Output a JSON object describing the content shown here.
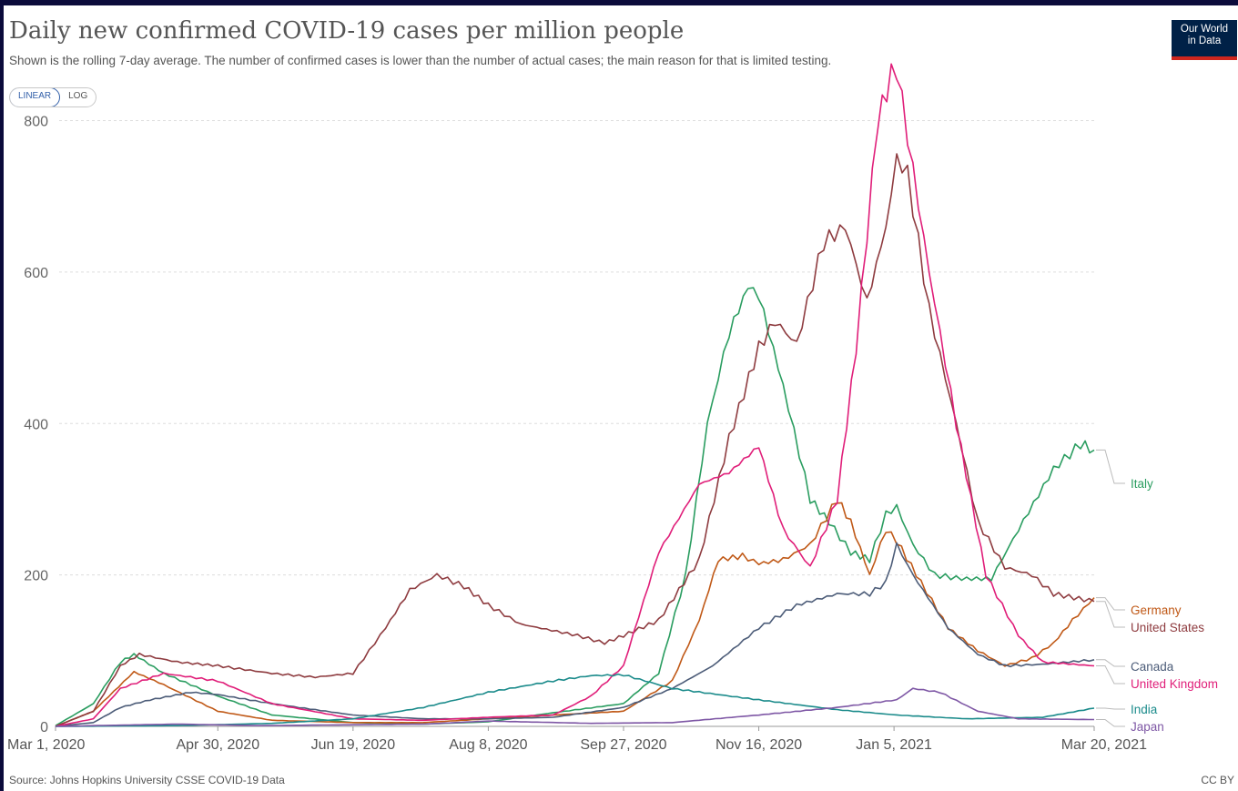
{
  "title": "Daily new confirmed COVID-19 cases per million people",
  "subtitle": "Shown is the rolling 7-day average. The number of confirmed cases is lower than the number of actual cases; the main reason for that is limited testing.",
  "scale_toggle": {
    "linear": "LINEAR",
    "log": "LOG",
    "selected": "LINEAR"
  },
  "logo": {
    "line1": "Our World",
    "line2": "in Data"
  },
  "source": "Source: Johns Hopkins University CSSE COVID-19 Data",
  "license": "CC BY",
  "chart_data": {
    "type": "line",
    "x_start": "2020-03-01",
    "x_end": "2021-03-20",
    "xlim": [
      "2020-03-01",
      "2021-03-20"
    ],
    "ylim": [
      0,
      880
    ],
    "y_ticks": [
      0,
      200,
      400,
      600,
      800
    ],
    "x_ticks": [
      {
        "label": "Mar 1, 2020",
        "date": "2020-03-01"
      },
      {
        "label": "Apr 30, 2020",
        "date": "2020-04-30"
      },
      {
        "label": "Jun 19, 2020",
        "date": "2020-06-19"
      },
      {
        "label": "Aug 8, 2020",
        "date": "2020-08-08"
      },
      {
        "label": "Sep 27, 2020",
        "date": "2020-09-27"
      },
      {
        "label": "Nov 16, 2020",
        "date": "2020-11-16"
      },
      {
        "label": "Jan 5, 2021",
        "date": "2021-01-05"
      },
      {
        "label": "Mar 20, 2021",
        "date": "2021-03-20"
      }
    ],
    "grid": "horizontal-dashed",
    "legend": "line-end-labels",
    "series": [
      {
        "name": "Italy",
        "color": "#2a9d60",
        "label_value": 365,
        "points": [
          [
            "2020-03-01",
            1
          ],
          [
            "2020-03-15",
            30
          ],
          [
            "2020-03-25",
            85
          ],
          [
            "2020-03-30",
            95
          ],
          [
            "2020-04-10",
            70
          ],
          [
            "2020-04-30",
            40
          ],
          [
            "2020-05-20",
            15
          ],
          [
            "2020-06-19",
            5
          ],
          [
            "2020-07-15",
            3
          ],
          [
            "2020-08-08",
            6
          ],
          [
            "2020-09-01",
            18
          ],
          [
            "2020-09-27",
            30
          ],
          [
            "2020-10-10",
            70
          ],
          [
            "2020-10-20",
            200
          ],
          [
            "2020-10-28",
            400
          ],
          [
            "2020-11-05",
            520
          ],
          [
            "2020-11-12",
            580
          ],
          [
            "2020-11-16",
            570
          ],
          [
            "2020-11-25",
            450
          ],
          [
            "2020-12-05",
            300
          ],
          [
            "2020-12-12",
            270
          ],
          [
            "2020-12-20",
            230
          ],
          [
            "2020-12-27",
            220
          ],
          [
            "2021-01-02",
            280
          ],
          [
            "2021-01-06",
            290
          ],
          [
            "2021-01-12",
            240
          ],
          [
            "2021-01-20",
            200
          ],
          [
            "2021-01-30",
            195
          ],
          [
            "2021-02-10",
            195
          ],
          [
            "2021-02-20",
            260
          ],
          [
            "2021-03-05",
            340
          ],
          [
            "2021-03-15",
            373
          ],
          [
            "2021-03-20",
            365
          ]
        ]
      },
      {
        "name": "Germany",
        "color": "#c05917",
        "label_value": 170,
        "points": [
          [
            "2020-03-01",
            0
          ],
          [
            "2020-03-15",
            20
          ],
          [
            "2020-03-30",
            72
          ],
          [
            "2020-04-10",
            55
          ],
          [
            "2020-04-30",
            20
          ],
          [
            "2020-05-20",
            8
          ],
          [
            "2020-06-19",
            5
          ],
          [
            "2020-07-15",
            5
          ],
          [
            "2020-08-08",
            10
          ],
          [
            "2020-09-01",
            15
          ],
          [
            "2020-09-27",
            20
          ],
          [
            "2020-10-15",
            60
          ],
          [
            "2020-10-25",
            140
          ],
          [
            "2020-11-01",
            220
          ],
          [
            "2020-11-10",
            225
          ],
          [
            "2020-11-16",
            215
          ],
          [
            "2020-11-25",
            220
          ],
          [
            "2020-12-05",
            240
          ],
          [
            "2020-12-15",
            300
          ],
          [
            "2020-12-20",
            270
          ],
          [
            "2020-12-27",
            200
          ],
          [
            "2021-01-02",
            260
          ],
          [
            "2021-01-06",
            245
          ],
          [
            "2021-01-15",
            190
          ],
          [
            "2021-01-25",
            130
          ],
          [
            "2021-02-05",
            100
          ],
          [
            "2021-02-15",
            80
          ],
          [
            "2021-02-25",
            90
          ],
          [
            "2021-03-05",
            110
          ],
          [
            "2021-03-12",
            140
          ],
          [
            "2021-03-20",
            170
          ]
        ]
      },
      {
        "name": "United States",
        "color": "#8e3b3f",
        "label_value": 165,
        "points": [
          [
            "2020-03-01",
            0
          ],
          [
            "2020-03-15",
            20
          ],
          [
            "2020-03-25",
            80
          ],
          [
            "2020-04-01",
            95
          ],
          [
            "2020-04-15",
            85
          ],
          [
            "2020-04-30",
            80
          ],
          [
            "2020-05-20",
            70
          ],
          [
            "2020-06-05",
            65
          ],
          [
            "2020-06-19",
            70
          ],
          [
            "2020-07-01",
            130
          ],
          [
            "2020-07-10",
            180
          ],
          [
            "2020-07-20",
            200
          ],
          [
            "2020-07-30",
            185
          ],
          [
            "2020-08-08",
            160
          ],
          [
            "2020-08-20",
            135
          ],
          [
            "2020-09-10",
            120
          ],
          [
            "2020-09-20",
            110
          ],
          [
            "2020-09-27",
            120
          ],
          [
            "2020-10-10",
            140
          ],
          [
            "2020-10-25",
            220
          ],
          [
            "2020-11-05",
            380
          ],
          [
            "2020-11-16",
            500
          ],
          [
            "2020-11-22",
            535
          ],
          [
            "2020-11-30",
            505
          ],
          [
            "2020-12-10",
            640
          ],
          [
            "2020-12-18",
            660
          ],
          [
            "2020-12-26",
            560
          ],
          [
            "2021-01-02",
            660
          ],
          [
            "2021-01-06",
            750
          ],
          [
            "2021-01-10",
            730
          ],
          [
            "2021-01-18",
            550
          ],
          [
            "2021-01-28",
            400
          ],
          [
            "2021-02-05",
            270
          ],
          [
            "2021-02-15",
            210
          ],
          [
            "2021-02-25",
            200
          ],
          [
            "2021-03-05",
            175
          ],
          [
            "2021-03-20",
            165
          ]
        ]
      },
      {
        "name": "Canada",
        "color": "#4c5c78",
        "label_value": 88,
        "points": [
          [
            "2020-03-01",
            0
          ],
          [
            "2020-03-15",
            5
          ],
          [
            "2020-03-25",
            25
          ],
          [
            "2020-04-05",
            35
          ],
          [
            "2020-04-20",
            45
          ],
          [
            "2020-04-30",
            42
          ],
          [
            "2020-05-20",
            30
          ],
          [
            "2020-06-19",
            15
          ],
          [
            "2020-07-15",
            10
          ],
          [
            "2020-08-08",
            10
          ],
          [
            "2020-09-01",
            12
          ],
          [
            "2020-09-27",
            25
          ],
          [
            "2020-10-15",
            50
          ],
          [
            "2020-10-30",
            80
          ],
          [
            "2020-11-16",
            130
          ],
          [
            "2020-11-30",
            160
          ],
          [
            "2020-12-15",
            175
          ],
          [
            "2020-12-27",
            175
          ],
          [
            "2021-01-02",
            190
          ],
          [
            "2021-01-06",
            240
          ],
          [
            "2021-01-12",
            200
          ],
          [
            "2021-01-25",
            130
          ],
          [
            "2021-02-05",
            95
          ],
          [
            "2021-02-15",
            80
          ],
          [
            "2021-03-01",
            82
          ],
          [
            "2021-03-20",
            88
          ]
        ]
      },
      {
        "name": "United Kingdom",
        "color": "#e01e79",
        "label_value": 80,
        "points": [
          [
            "2020-03-01",
            0
          ],
          [
            "2020-03-15",
            10
          ],
          [
            "2020-03-25",
            50
          ],
          [
            "2020-04-10",
            70
          ],
          [
            "2020-04-30",
            60
          ],
          [
            "2020-05-20",
            30
          ],
          [
            "2020-06-19",
            10
          ],
          [
            "2020-07-15",
            8
          ],
          [
            "2020-08-08",
            12
          ],
          [
            "2020-09-01",
            15
          ],
          [
            "2020-09-15",
            40
          ],
          [
            "2020-09-27",
            80
          ],
          [
            "2020-10-10",
            230
          ],
          [
            "2020-10-25",
            320
          ],
          [
            "2020-11-05",
            335
          ],
          [
            "2020-11-16",
            370
          ],
          [
            "2020-11-25",
            260
          ],
          [
            "2020-12-05",
            210
          ],
          [
            "2020-12-15",
            300
          ],
          [
            "2020-12-22",
            500
          ],
          [
            "2020-12-30",
            800
          ],
          [
            "2021-01-04",
            860
          ],
          [
            "2021-01-06",
            870
          ],
          [
            "2021-01-10",
            780
          ],
          [
            "2021-01-18",
            600
          ],
          [
            "2021-01-28",
            400
          ],
          [
            "2021-02-08",
            200
          ],
          [
            "2021-02-20",
            120
          ],
          [
            "2021-03-01",
            85
          ],
          [
            "2021-03-20",
            80
          ]
        ]
      },
      {
        "name": "India",
        "color": "#1b8b8b",
        "label_value": 24,
        "points": [
          [
            "2020-03-01",
            0
          ],
          [
            "2020-04-15",
            1
          ],
          [
            "2020-05-20",
            4
          ],
          [
            "2020-06-19",
            10
          ],
          [
            "2020-07-15",
            25
          ],
          [
            "2020-08-08",
            45
          ],
          [
            "2020-09-01",
            60
          ],
          [
            "2020-09-15",
            67
          ],
          [
            "2020-09-27",
            68
          ],
          [
            "2020-10-15",
            50
          ],
          [
            "2020-11-16",
            35
          ],
          [
            "2020-12-15",
            22
          ],
          [
            "2021-01-06",
            15
          ],
          [
            "2021-02-01",
            10
          ],
          [
            "2021-03-01",
            12
          ],
          [
            "2021-03-20",
            24
          ]
        ]
      },
      {
        "name": "Japan",
        "color": "#7e57a5",
        "label_value": 9,
        "points": [
          [
            "2020-03-01",
            0
          ],
          [
            "2020-04-15",
            3
          ],
          [
            "2020-05-15",
            1
          ],
          [
            "2020-07-15",
            3
          ],
          [
            "2020-08-08",
            7
          ],
          [
            "2020-09-15",
            4
          ],
          [
            "2020-10-15",
            5
          ],
          [
            "2020-11-16",
            15
          ],
          [
            "2020-12-15",
            25
          ],
          [
            "2021-01-06",
            35
          ],
          [
            "2021-01-12",
            50
          ],
          [
            "2021-01-22",
            45
          ],
          [
            "2021-02-05",
            20
          ],
          [
            "2021-02-20",
            10
          ],
          [
            "2021-03-20",
            9
          ]
        ]
      }
    ]
  }
}
